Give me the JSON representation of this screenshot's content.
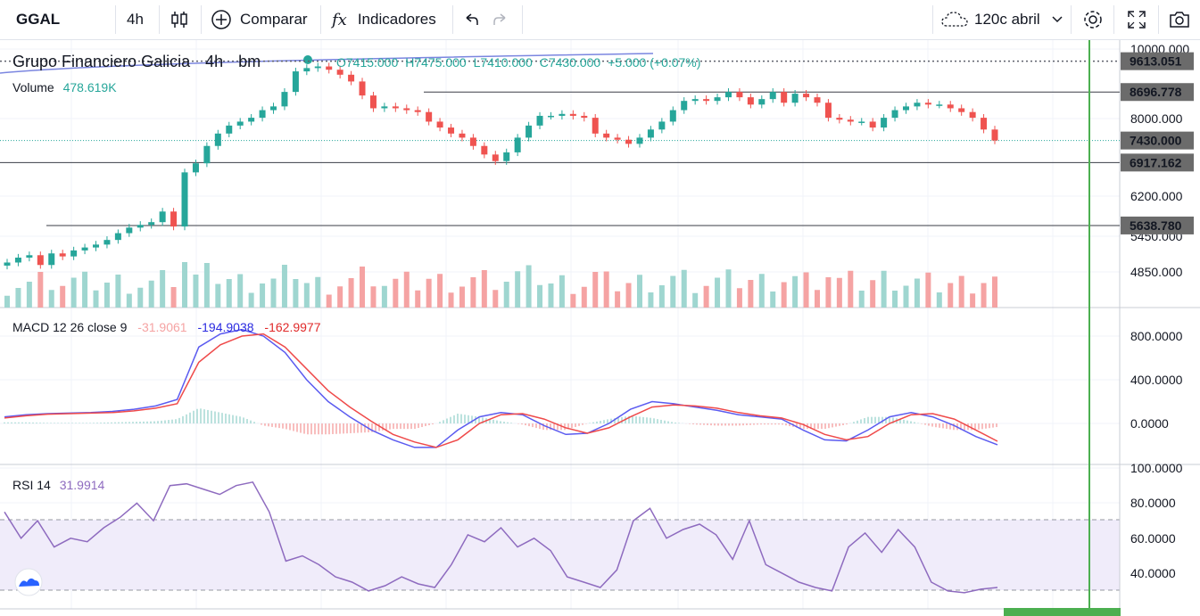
{
  "toolbar": {
    "symbol": "GGAL",
    "interval": "4h",
    "compare_label": "Comparar",
    "indicators_label": "Indicadores",
    "fx_label": "fx",
    "range_label": "120c abril"
  },
  "colors": {
    "up": "#26a69a",
    "down": "#ef5350",
    "vol_up": "#9fd6d0",
    "vol_down": "#f5a3a3",
    "macd_line": "#5b5bf0",
    "signal_line": "#ef4a4a",
    "rsi_line": "#8e6bbf",
    "rsi_band": "#f0ecfa",
    "current_price_marker": "#6b6b6b",
    "vertical_line": "#4caf50"
  },
  "main_legend": {
    "title": "Grupo Financiero Galicia",
    "interval": "4h",
    "exchange": "bm",
    "o_label": "O",
    "o": "7415.000",
    "h_label": "H",
    "h": "7475.000",
    "l_label": "L",
    "l": "7410.000",
    "c_label": "C",
    "c": "7430.000",
    "change": "+5.000 (+0.07%)",
    "volume_label": "Volume",
    "volume_value": "478.619K"
  },
  "macd_legend": {
    "label": "MACD 12 26 close 9",
    "hist": "-31.9061",
    "macd": "-194.9038",
    "signal": "-162.9977"
  },
  "rsi_legend": {
    "label": "RSI 14",
    "value": "31.9914"
  },
  "price_axis": [
    "10000.000",
    "8000.000",
    "6200.000",
    "5450.000",
    "4850.000"
  ],
  "price_markers": [
    {
      "label": "9613.051",
      "value": 9613.051,
      "style": "dotted"
    },
    {
      "label": "8696.778",
      "value": 8696.778,
      "style": "solid"
    },
    {
      "label": "7430.000",
      "value": 7430.0,
      "style": "current"
    },
    {
      "label": "6917.162",
      "value": 6917.162,
      "style": "solid"
    },
    {
      "label": "5638.780",
      "value": 5638.78,
      "style": "solid"
    }
  ],
  "macd_axis": [
    "800.0000",
    "400.0000",
    "0.0000"
  ],
  "rsi_axis": [
    "100.0000",
    "80.0000",
    "60.0000",
    "40.0000"
  ],
  "chart_data": [
    {
      "type": "candlestick",
      "title": "Grupo Financiero Galicia 4h bm",
      "y_scale": "log",
      "ylim": [
        4600,
        10000
      ],
      "closes": [
        5000,
        5080,
        5120,
        4960,
        5150,
        5100,
        5200,
        5250,
        5300,
        5380,
        5500,
        5600,
        5650,
        5700,
        5900,
        5620,
        6700,
        6900,
        7300,
        7600,
        7800,
        7900,
        8000,
        8200,
        8300,
        8700,
        9300,
        9400,
        9450,
        9350,
        9200,
        9000,
        8600,
        8250,
        8300,
        8250,
        8200,
        8150,
        7900,
        7750,
        7600,
        7500,
        7300,
        7100,
        6950,
        7150,
        7500,
        7800,
        8050,
        8050,
        8100,
        8050,
        8000,
        7600,
        7500,
        7450,
        7350,
        7500,
        7700,
        7900,
        8200,
        8450,
        8500,
        8450,
        8550,
        8700,
        8550,
        8350,
        8500,
        8700,
        8400,
        8650,
        8550,
        8400,
        8000,
        7950,
        7900,
        7900,
        7750,
        8000,
        8200,
        8300,
        8400,
        8350,
        8350,
        8250,
        8150,
        8000,
        7700,
        7430
      ]
    },
    {
      "type": "bar",
      "title": "Volume",
      "last_value": "478.619K"
    },
    {
      "type": "line",
      "title": "MACD 12 26 close 9",
      "ylim": [
        -300,
        900
      ],
      "series": [
        {
          "name": "MACD",
          "values": [
            60,
            80,
            90,
            95,
            100,
            110,
            130,
            160,
            220,
            700,
            820,
            860,
            800,
            650,
            400,
            200,
            60,
            -60,
            -150,
            -220,
            -220,
            -60,
            60,
            100,
            80,
            -20,
            -100,
            -90,
            0,
            130,
            200,
            180,
            150,
            120,
            80,
            60,
            40,
            -60,
            -150,
            -160,
            -60,
            60,
            100,
            60,
            -20,
            -120,
            -195
          ]
        },
        {
          "name": "Signal",
          "values": [
            50,
            70,
            85,
            90,
            95,
            100,
            115,
            140,
            180,
            560,
            720,
            800,
            820,
            700,
            500,
            300,
            150,
            20,
            -100,
            -170,
            -220,
            -150,
            0,
            80,
            90,
            40,
            -40,
            -90,
            -40,
            60,
            150,
            170,
            160,
            140,
            100,
            70,
            50,
            -10,
            -100,
            -150,
            -120,
            0,
            80,
            90,
            40,
            -60,
            -163
          ]
        }
      ]
    },
    {
      "type": "line",
      "title": "RSI 14",
      "ylim": [
        20,
        100
      ],
      "series": [
        {
          "name": "RSI",
          "values": [
            75,
            60,
            70,
            55,
            60,
            58,
            66,
            72,
            80,
            70,
            90,
            91,
            88,
            85,
            90,
            92,
            75,
            47,
            50,
            45,
            38,
            35,
            30,
            33,
            38,
            34,
            32,
            45,
            62,
            58,
            66,
            55,
            60,
            53,
            38,
            35,
            32,
            42,
            70,
            77,
            60,
            65,
            68,
            62,
            48,
            70,
            45,
            40,
            35,
            32,
            30,
            55,
            63,
            52,
            65,
            55,
            35,
            30,
            29,
            31,
            32
          ]
        }
      ],
      "band": [
        30,
        70
      ]
    }
  ]
}
